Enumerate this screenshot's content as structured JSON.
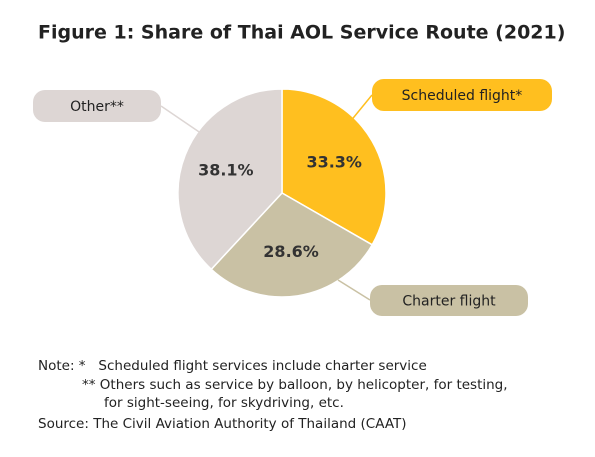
{
  "chart_data": {
    "type": "pie",
    "title": "Figure 1: Share of Thai AOL Service Route (2021)",
    "categories": [
      "Scheduled flight*",
      "Charter flight",
      "Other**"
    ],
    "values": [
      33.3,
      28.6,
      38.1
    ],
    "value_labels": [
      "33.3%",
      "28.6%",
      "38.1%"
    ],
    "colors": [
      "#FFBF1F",
      "#C9C1A4",
      "#DDD6D4"
    ]
  },
  "notes": [
    "Note: *   Scheduled flight services include charter service",
    "** Others such as service by balloon, by helicopter, for testing,",
    "for sight-seeing, for skydriving, etc."
  ],
  "source": "Source: The Civil Aviation Authority of Thailand (CAAT)"
}
